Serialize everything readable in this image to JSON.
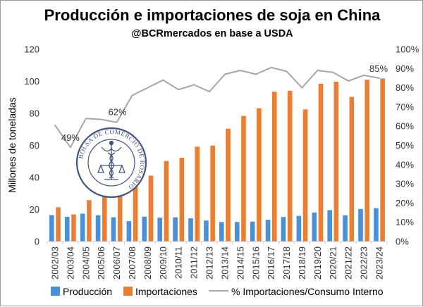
{
  "chart_data": {
    "type": "bar",
    "title": "Producción e importaciones de soja en China",
    "subtitle": "@BCRmercados en base a USDA",
    "ylabel": "Millones de toneladas",
    "y2label": "",
    "ylim": [
      0,
      120
    ],
    "y_ticks": [
      0,
      20,
      40,
      60,
      80,
      100,
      120
    ],
    "y2lim": [
      0,
      100
    ],
    "y2_ticks": [
      "0%",
      "10%",
      "20%",
      "30%",
      "40%",
      "50%",
      "60%",
      "70%",
      "80%",
      "90%",
      "100%"
    ],
    "categories": [
      "2002/03",
      "2003/04",
      "2004/05",
      "2005/06",
      "2006/07",
      "2007/08",
      "2008/09",
      "2009/10",
      "2010/11",
      "2011/12",
      "2012/13",
      "2013/14",
      "2014/15",
      "2015/16",
      "2016/17",
      "2017/18",
      "2018/19",
      "2019/20",
      "2020/21",
      "2021/22",
      "2022/23",
      "2023/24"
    ],
    "series": [
      {
        "name": "Producción",
        "kind": "bar",
        "color": "#4a90d9",
        "axis": "left",
        "values": [
          16.5,
          15.4,
          17.4,
          16.4,
          15.1,
          12.7,
          15.5,
          14.9,
          15.1,
          14.5,
          13.1,
          12.2,
          12.2,
          12.4,
          13.6,
          15.3,
          16.0,
          18.1,
          19.6,
          16.4,
          20.3,
          20.8
        ]
      },
      {
        "name": "Importaciones",
        "kind": "bar",
        "color": "#ed7d31",
        "axis": "left",
        "values": [
          21.4,
          16.9,
          25.8,
          28.3,
          28.7,
          37.8,
          41.1,
          50.3,
          52.3,
          59.2,
          59.9,
          70.4,
          78.4,
          83.2,
          93.5,
          94.1,
          82.5,
          98.5,
          99.8,
          90.3,
          101.0,
          101.8
        ]
      },
      {
        "name": "% Importaciones/Consumo Interno",
        "kind": "line",
        "color": "#a6a6a6",
        "axis": "right",
        "values": [
          60.5,
          49,
          64,
          63.5,
          62,
          76,
          80,
          84,
          79,
          81.5,
          78,
          87,
          89,
          87,
          90.5,
          88.5,
          80,
          89,
          88,
          83.5,
          86.5,
          85
        ]
      }
    ],
    "annotations": [
      {
        "category": "2003/04",
        "series": "% Importaciones/Consumo Interno",
        "text": "49%"
      },
      {
        "category": "2006/07",
        "series": "% Importaciones/Consumo Interno",
        "text": "62%"
      },
      {
        "category": "2023/24",
        "series": "% Importaciones/Consumo Interno",
        "text": "85%"
      }
    ],
    "grid": false,
    "legend_position": "bottom"
  },
  "watermark": {
    "text": "BOLSA DE COMERCIO DE ROSARIO",
    "icon": "caduceus-seal-icon",
    "color": "#3a4b75"
  }
}
